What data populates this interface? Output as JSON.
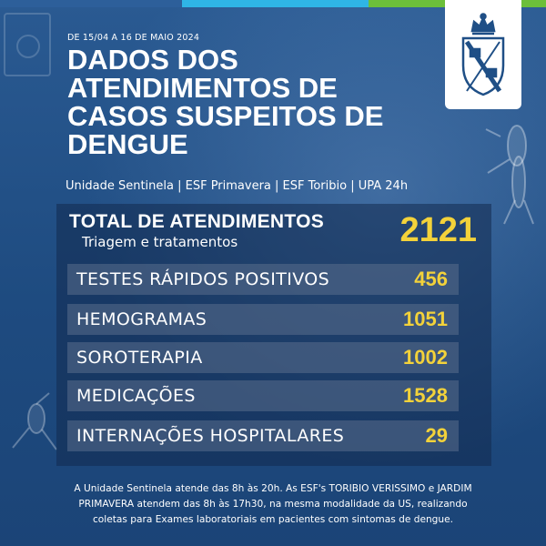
{
  "header": {
    "date_range": "DE 15/04 A 16 DE MAIO 2024",
    "title_lines": [
      "DADOS  DOS",
      "ATENDIMENTOS DE",
      "CASOS SUSPEITOS DE",
      "DENGUE"
    ],
    "units": "Unidade Sentinela | ESF Primavera | ESF Toribio | UPA 24h"
  },
  "total": {
    "label": "TOTAL DE ATENDIMENTOS",
    "sublabel": "Triagem e tratamentos",
    "value": "2121"
  },
  "rows": [
    {
      "label": "TESTES RÁPIDOS POSITIVOS",
      "value": "456"
    },
    {
      "label": "HEMOGRAMAS",
      "value": "1051"
    },
    {
      "label": "SOROTERAPIA",
      "value": "1002"
    },
    {
      "label": "MEDICAÇÕES",
      "value": "1528"
    },
    {
      "label": "INTERNAÇÕES HOSPITALARES",
      "value": "29"
    }
  ],
  "footer": {
    "lines": [
      "A Unidade Sentinela atende das 8h às 20h. As ESF's TORIBIO VERISSIMO e JARDIM",
      "PRIMAVERA atendem das 8h às 17h30, na mesma modalidade da US, realizando",
      "coletas para Exames laboratoriais em pacientes com sintomas de dengue."
    ]
  },
  "colors": {
    "background": "#1f4f86",
    "accent_yellow": "#f3d23a",
    "top_bar": [
      "#2d5f9a",
      "#2fb5e6",
      "#6cbf3a"
    ]
  },
  "icons": {
    "logo": "municipal-coat-of-arms-icon",
    "decor": [
      "crosshair-icon",
      "mosquito-icon"
    ]
  }
}
